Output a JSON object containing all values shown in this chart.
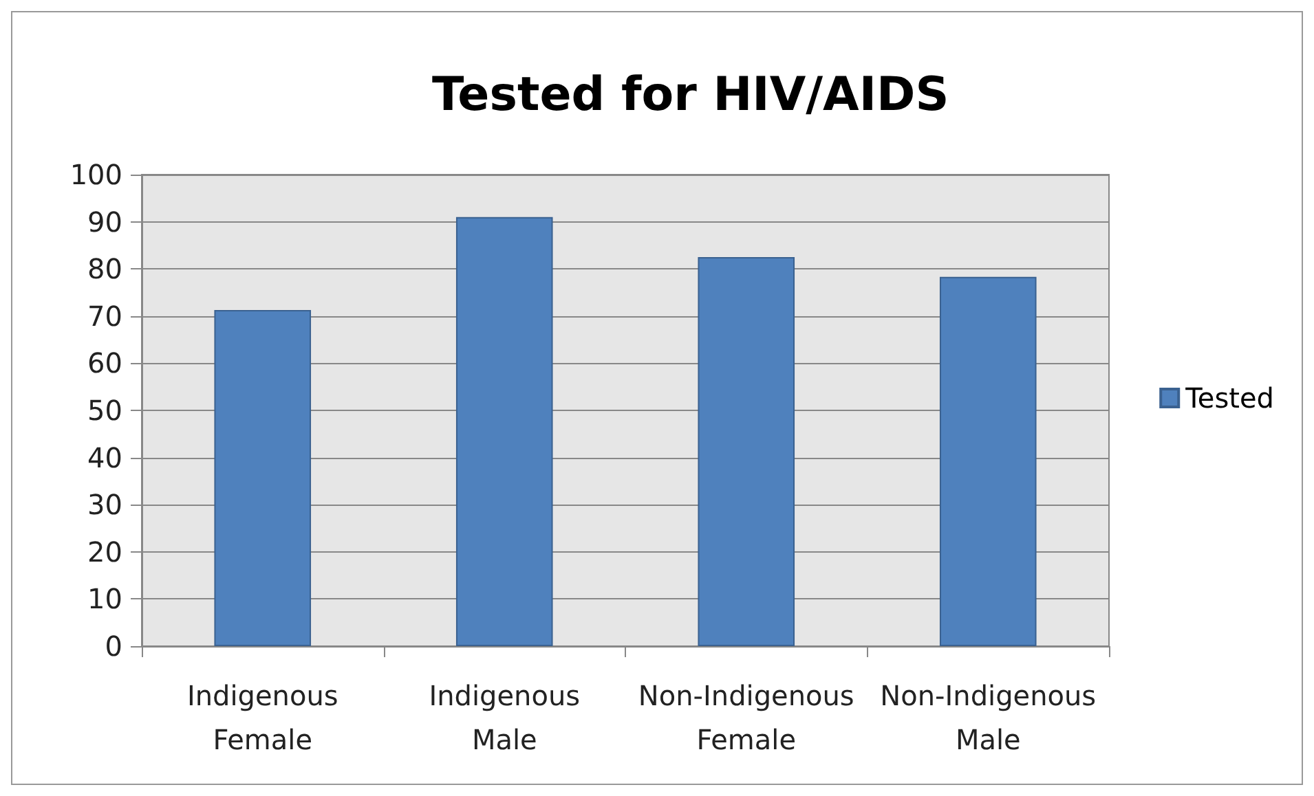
{
  "chart_data": {
    "type": "bar",
    "title": "Tested for HIV/AIDS",
    "categories": [
      "Indigenous Female",
      "Indigenous Male",
      "Non-Indigenous Female",
      "Non-Indigenous Male"
    ],
    "series": [
      {
        "name": "Tested",
        "color": "#4f81bd",
        "values": [
          71.3,
          91,
          82.5,
          78.3
        ]
      }
    ],
    "ylim": [
      0,
      100
    ],
    "yticks": [
      0,
      10,
      20,
      30,
      40,
      50,
      60,
      70,
      80,
      90,
      100
    ],
    "grid": "y",
    "legend": "right"
  }
}
